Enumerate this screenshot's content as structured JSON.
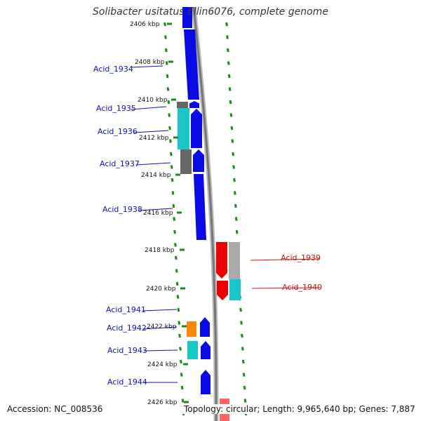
{
  "title": "Solibacter usitatus Ellin6076, complete genome",
  "footer": {
    "accession_label": "Accession:",
    "accession_value": "NC_008536",
    "topology_label": "Topology:",
    "topology_value": "circular",
    "length_label": "Length:",
    "length_value": "9,965,640 bp",
    "genes_label": "Genes:",
    "genes_value": "7,887"
  },
  "colors": {
    "forward_strand": "#0a0ae6",
    "reverse_strand": "#ee0000",
    "cyan": "#18c8c8",
    "gray": "#666666",
    "light_gray": "#aaaaaa",
    "orange": "#ff8800",
    "tick_green": "#1a8a1a",
    "label_blue": "#1010c0",
    "label_red": "#d01010"
  },
  "kbp_ticks": [
    "2406 kbp",
    "2408 kbp",
    "2410 kbp",
    "2412 kbp",
    "2414 kbp",
    "2416 kbp",
    "2418 kbp",
    "2420 kbp",
    "2422 kbp",
    "2424 kbp",
    "2426 kbp"
  ],
  "genes": [
    {
      "label": "Acid_1934",
      "strand": "forward"
    },
    {
      "label": "Acid_1935",
      "strand": "forward"
    },
    {
      "label": "Acid_1936",
      "strand": "forward"
    },
    {
      "label": "Acid_1937",
      "strand": "forward"
    },
    {
      "label": "Acid_1938",
      "strand": "forward"
    },
    {
      "label": "Acid_1939",
      "strand": "reverse"
    },
    {
      "label": "Acid_1940",
      "strand": "reverse"
    },
    {
      "label": "Acid_1941",
      "strand": "forward"
    },
    {
      "label": "Acid_1942",
      "strand": "forward"
    },
    {
      "label": "Acid_1943",
      "strand": "forward"
    },
    {
      "label": "Acid_1944",
      "strand": "forward"
    }
  ]
}
